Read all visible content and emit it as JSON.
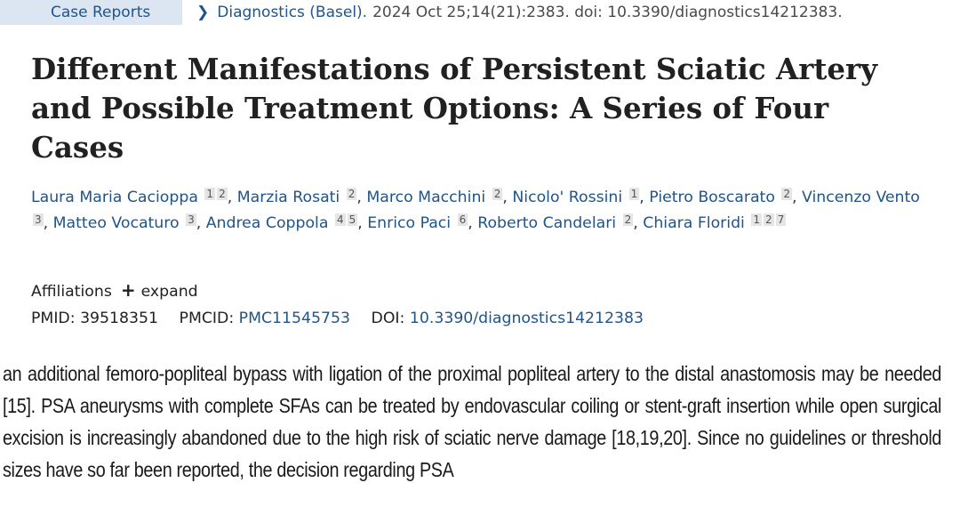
{
  "header": {
    "article_type": "Case Reports",
    "journal": "Diagnostics (Basel).",
    "citation": "2024 Oct 25;14(21):2383. doi: 10.3390/diagnostics14212383."
  },
  "title": "Different Manifestations of Persistent Sciatic Artery and Possible Treatment Options: A Series of Four Cases",
  "authors": [
    {
      "name": "Laura Maria Cacioppa",
      "affs": [
        "1",
        "2"
      ]
    },
    {
      "name": "Marzia Rosati",
      "affs": [
        "2"
      ]
    },
    {
      "name": "Marco Macchini",
      "affs": [
        "2"
      ]
    },
    {
      "name": "Nicolo' Rossini",
      "affs": [
        "1"
      ]
    },
    {
      "name": "Pietro Boscarato",
      "affs": [
        "2"
      ]
    },
    {
      "name": "Vincenzo Vento",
      "affs": [
        "3"
      ]
    },
    {
      "name": "Matteo Vocaturo",
      "affs": [
        "3"
      ]
    },
    {
      "name": "Andrea Coppola",
      "affs": [
        "4",
        "5"
      ]
    },
    {
      "name": "Enrico Paci",
      "affs": [
        "6"
      ]
    },
    {
      "name": "Roberto Candelari",
      "affs": [
        "2"
      ]
    },
    {
      "name": "Chiara Floridi",
      "affs": [
        "1",
        "2",
        "7"
      ]
    }
  ],
  "affiliations": {
    "label": "Affiliations",
    "expand_label": "expand"
  },
  "identifiers": {
    "pmid_label": "PMID:",
    "pmid": "39518351",
    "pmcid_label": "PMCID:",
    "pmcid": "PMC11545753",
    "doi_label": "DOI:",
    "doi": "10.3390/diagnostics14212383"
  },
  "excerpt": "an additional femoro-popliteal bypass with ligation of the proximal popliteal artery to the distal anastomosis may be needed [15]. PSA aneurysms with complete SFAs can be treated by endovascular coiling or stent-graft insertion while open surgical excision is increasingly abandoned due to the high risk of sciatic nerve damage [18,19,20]. Since no guidelines or threshold sizes have so far been reported, the decision regarding PSA",
  "colors": {
    "link": "#20558a",
    "badge_bg": "#dce6f2"
  },
  "icons": {
    "expand": "plus-icon",
    "journal": "chevron-right-icon"
  }
}
